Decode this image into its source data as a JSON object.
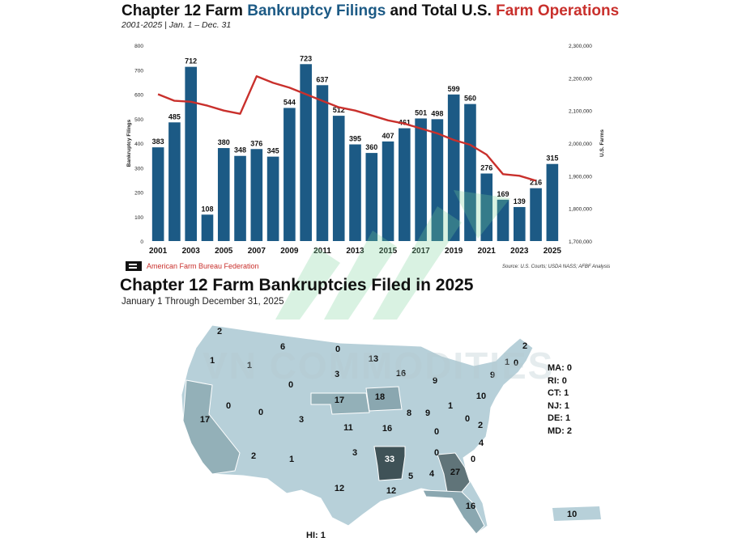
{
  "top_chart": {
    "title_part1": "Chapter 12 Farm ",
    "title_part2": "Bankruptcy Filings",
    "title_part3": " and Total U.S. ",
    "title_part4": "Farm Operations",
    "subtitle": "2001-2025 | Jan. 1 – Dec. 31",
    "org": "American Farm Bureau Federation",
    "source": "Source: U.S. Courts; USDA NASS; AFBF Analysis"
  },
  "bottom_map": {
    "title": "Chapter 12 Farm Bankruptcies Filed in 2025",
    "subtitle": "January 1 Through December 31, 2025",
    "watermark": "VN COMMODITIES",
    "small_states": [
      "MA: 0",
      "RI: 0",
      "CT: 1",
      "NJ: 1",
      "DE: 1",
      "MD: 2"
    ],
    "hawaii": "HI: 1",
    "puerto_rico": "10"
  },
  "colors": {
    "bar": "#1c5a85",
    "line": "#c9302c",
    "map_base": "#b7d0d9",
    "map_dark": "#3f5257"
  },
  "chart_data": [
    {
      "type": "bar",
      "title": "Chapter 12 Farm Bankruptcy Filings and Total U.S. Farm Operations",
      "subtitle": "2001-2025 | Jan. 1 – Dec. 31",
      "x": [
        2001,
        2002,
        2003,
        2004,
        2005,
        2006,
        2007,
        2008,
        2009,
        2010,
        2011,
        2012,
        2013,
        2014,
        2015,
        2016,
        2017,
        2018,
        2019,
        2020,
        2021,
        2022,
        2023,
        2024,
        2025
      ],
      "x_tick_labels": [
        "2001",
        "2003",
        "2005",
        "2007",
        "2009",
        "2011",
        "2013",
        "2015",
        "2017",
        "2019",
        "2021",
        "2023",
        "2025"
      ],
      "ylabel": "Bankruptcy Filings",
      "ylim": [
        0,
        800
      ],
      "y_ticks": [
        "0",
        "100",
        "200",
        "300",
        "400",
        "500",
        "600",
        "700",
        "800"
      ],
      "y2label": "U.S. Farms",
      "y2lim": [
        1700000,
        2300000
      ],
      "y2_ticks": [
        "1,700,000",
        "1,800,000",
        "1,900,000",
        "2,000,000",
        "2,100,000",
        "2,200,000",
        "2,300,000"
      ],
      "grid": false,
      "series": [
        {
          "name": "Bankruptcy Filings",
          "kind": "bar",
          "values": [
            383,
            485,
            712,
            108,
            380,
            348,
            376,
            345,
            544,
            723,
            637,
            512,
            395,
            360,
            407,
            461,
            501,
            498,
            599,
            560,
            276,
            169,
            139,
            216,
            315
          ]
        },
        {
          "name": "U.S. Farms",
          "kind": "line",
          "axis": "right",
          "values": [
            2150000,
            2130000,
            2127000,
            2115000,
            2100000,
            2090000,
            2205000,
            2185000,
            2170000,
            2150000,
            2130000,
            2110000,
            2100000,
            2085000,
            2070000,
            2060000,
            2045000,
            2030000,
            2010000,
            1995000,
            1965000,
            1905000,
            1900000,
            1885000,
            null
          ]
        }
      ]
    },
    {
      "type": "table",
      "title": "Chapter 12 Farm Bankruptcies Filed in 2025",
      "subtitle": "January 1 Through December 31, 2025",
      "values": {
        "WA": 2,
        "OR": 1,
        "CA": 17,
        "ID": 1,
        "NV": 0,
        "MT": 6,
        "WY": 0,
        "UT": 0,
        "AZ": 2,
        "CO": 3,
        "NM": 1,
        "ND": 0,
        "SD": 3,
        "NE": 17,
        "KS": 11,
        "OK": 3,
        "TX": 12,
        "MN": 13,
        "IA": 18,
        "MO": 16,
        "AR": 33,
        "LA": 12,
        "WI": 16,
        "IL": 8,
        "MI": 9,
        "IN": 9,
        "OH": 1,
        "KY": 0,
        "TN": 0,
        "MS": 5,
        "AL": 4,
        "GA": 27,
        "FL": 16,
        "SC": 0,
        "NC": 4,
        "VA": 2,
        "WV": 0,
        "PA": 10,
        "NY": 9,
        "VT": 1,
        "NH": 0,
        "ME": 2,
        "MA": 0,
        "RI": 0,
        "CT": 1,
        "NJ": 1,
        "DE": 1,
        "MD": 2,
        "HI": 1,
        "PR": 10
      }
    }
  ]
}
